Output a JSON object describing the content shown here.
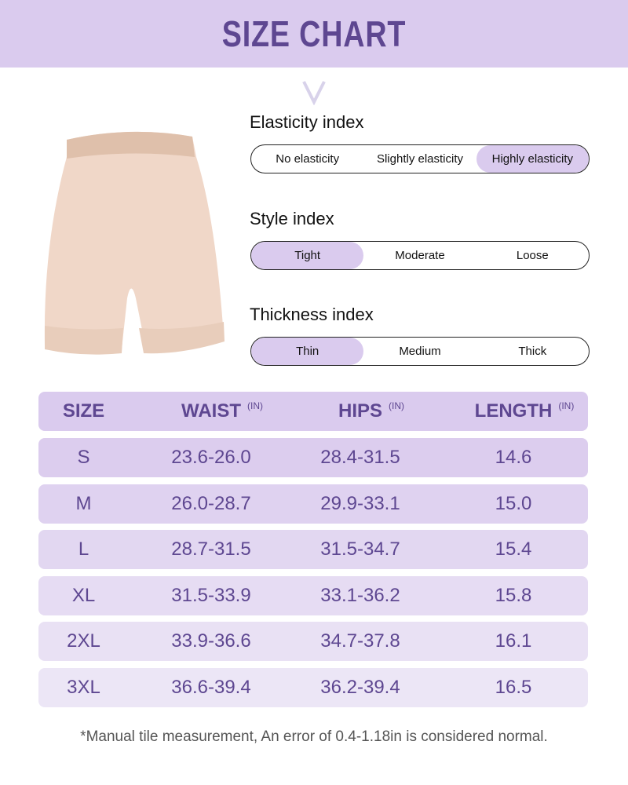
{
  "title": "SIZE CHART",
  "colors": {
    "banner": "#dacbee",
    "accent": "#5e4791",
    "row_top": "#dccdee",
    "row_bottom": "#ece6f6"
  },
  "indices": [
    {
      "label": "Elasticity index",
      "options": [
        "No elasticity",
        "Slightly elasticity",
        "Highly elasticity"
      ],
      "selected": 2
    },
    {
      "label": "Style index",
      "options": [
        "Tight",
        "Moderate",
        "Loose"
      ],
      "selected": 0
    },
    {
      "label": "Thickness index",
      "options": [
        "Thin",
        "Medium",
        "Thick"
      ],
      "selected": 0
    }
  ],
  "table": {
    "headers": [
      {
        "label": "SIZE",
        "unit": ""
      },
      {
        "label": "WAIST",
        "unit": "(IN)"
      },
      {
        "label": "HIPS",
        "unit": "(IN)"
      },
      {
        "label": "LENGTH",
        "unit": "(IN)"
      }
    ],
    "rows": [
      [
        "S",
        "23.6-26.0",
        "28.4-31.5",
        "14.6"
      ],
      [
        "M",
        "26.0-28.7",
        "29.9-33.1",
        "15.0"
      ],
      [
        "L",
        "28.7-31.5",
        "31.5-34.7",
        "15.4"
      ],
      [
        "XL",
        "31.5-33.9",
        "33.1-36.2",
        "15.8"
      ],
      [
        "2XL",
        "33.9-36.6",
        "34.7-37.8",
        "16.1"
      ],
      [
        "3XL",
        "36.6-39.4",
        "36.2-39.4",
        "16.5"
      ]
    ]
  },
  "note": "*Manual tile measurement, An error of 0.4-1.18in is considered normal."
}
